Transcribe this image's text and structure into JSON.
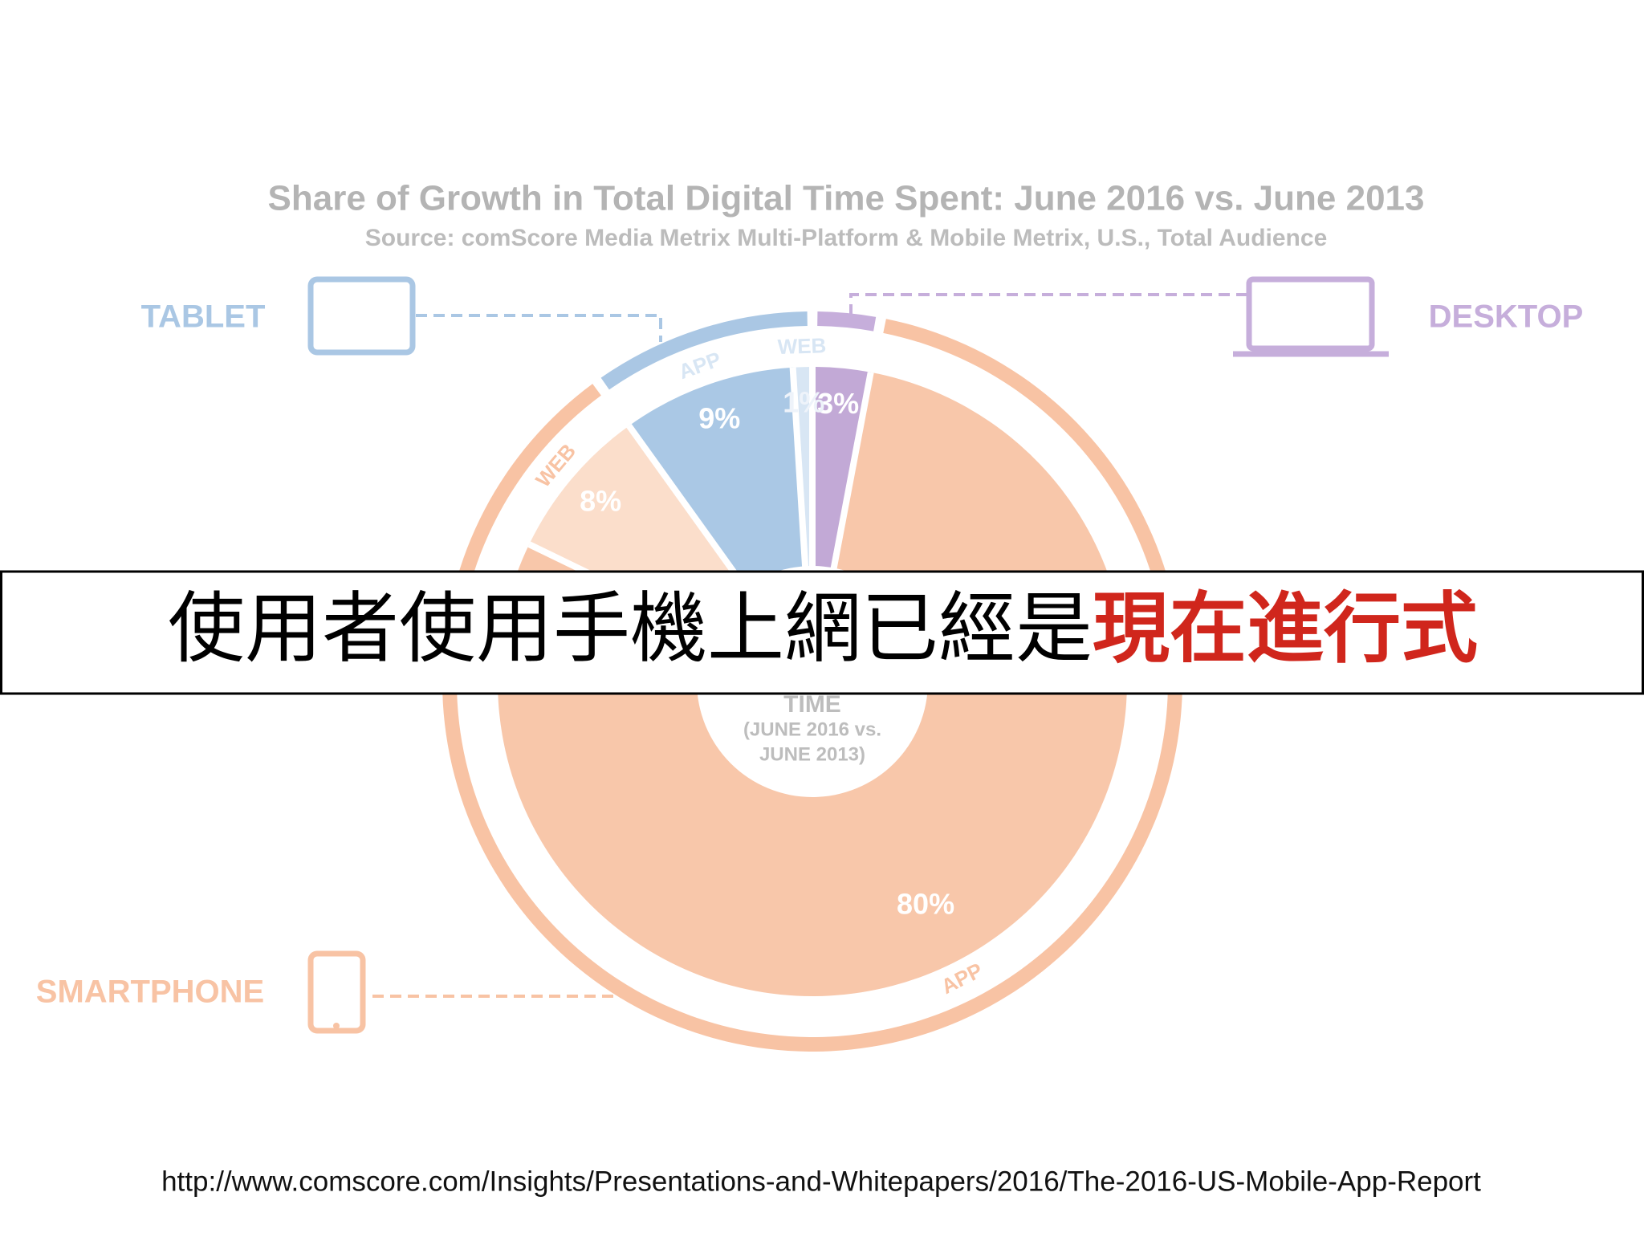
{
  "chart_data": {
    "type": "pie",
    "title": "Share of Growth in Total Digital Time Spent: June 2016 vs. June 2013",
    "subtitle": "Source: comScore Media Metrix Multi-Platform & Mobile Metrix, U.S., Total Audience",
    "center_text": [
      "TIME",
      "(JUNE 2016 vs.",
      "JUNE 2013)"
    ],
    "groups": [
      {
        "name": "DESKTOP",
        "color": "#c6aedb",
        "slices": [
          {
            "value": 3,
            "value_label": "3%",
            "color": "#c2a9d6",
            "label": null
          }
        ]
      },
      {
        "name": "SMARTPHONE",
        "color": "#f8c3a4",
        "slices": [
          {
            "value": 80,
            "value_label": "80%",
            "color": "#f8c7aa",
            "label": "APP"
          },
          {
            "value": 8,
            "value_label": "8%",
            "color": "#fbdecb",
            "label": "WEB"
          }
        ]
      },
      {
        "name": "TABLET",
        "color": "#aac7e4",
        "slices": [
          {
            "value": 9,
            "value_label": "9%",
            "color": "#aac8e5",
            "label": "APP"
          },
          {
            "value": 1,
            "value_label": "1%",
            "color": "#d8e6f4",
            "label": "WEB"
          }
        ]
      }
    ]
  },
  "banner": {
    "text": "使用者使用手機上網已經是",
    "highlight": "現在進行式"
  },
  "source_url": "http://www.comscore.com/Insights/Presentations-and-Whitepapers/2016/The-2016-US-Mobile-App-Report"
}
